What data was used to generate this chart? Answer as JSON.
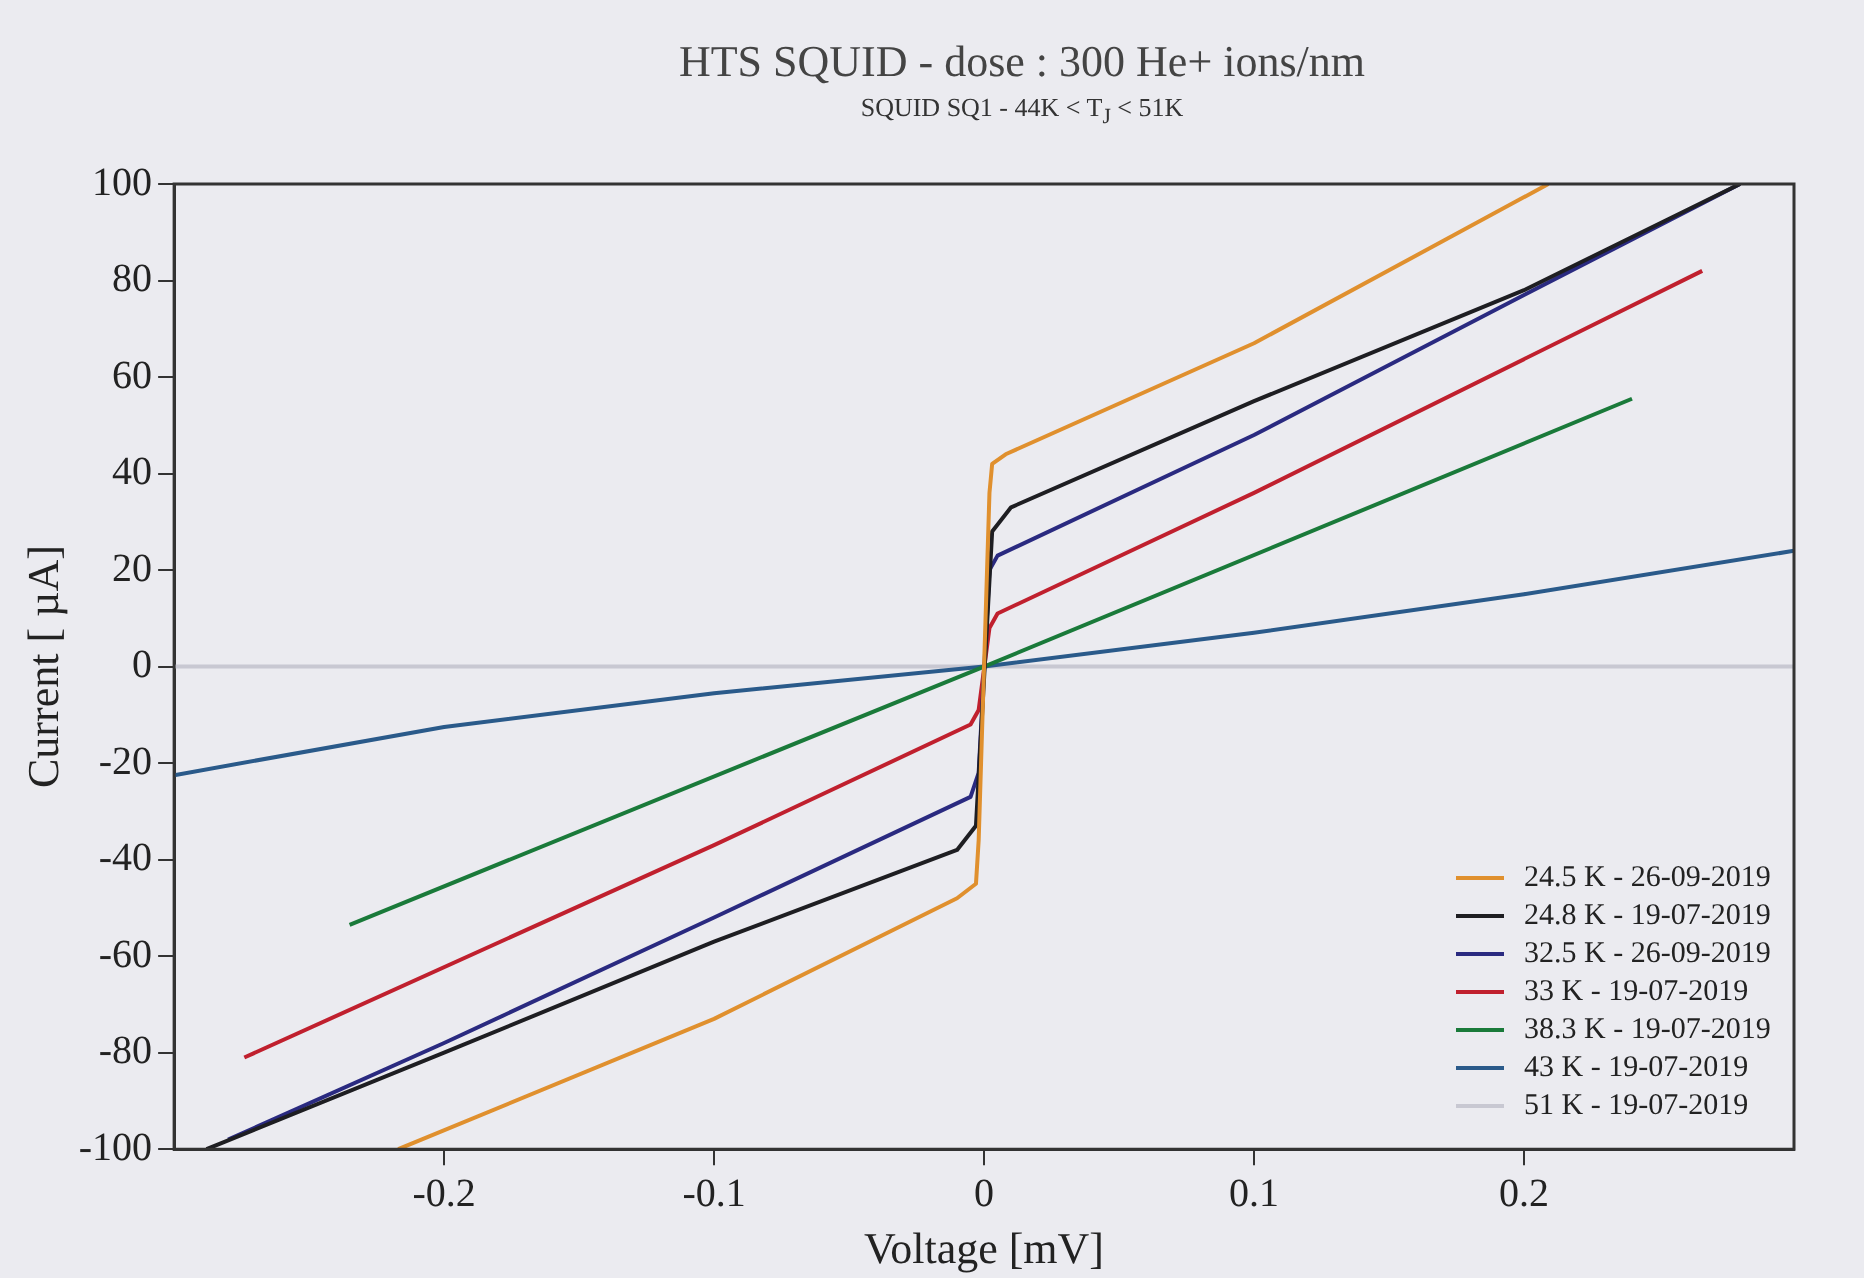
{
  "chart_data": {
    "type": "line",
    "title": "HTS SQUID - dose : 300 He+ ions/nm",
    "subtitle": "SQUID SQ1 - 44K < T$_{J}$ < 51K",
    "xlabel": "Voltage [mV]",
    "ylabel": "Current [ µA]",
    "xlim": [
      -0.3,
      0.3
    ],
    "xticks": [
      -0.2,
      -0.1,
      0,
      0.1,
      0.2
    ],
    "ylim": [
      -100,
      100
    ],
    "yticks": [
      -100,
      -80,
      -60,
      -40,
      -20,
      0,
      20,
      40,
      60,
      80,
      100
    ],
    "grid": false,
    "legend": "bottom right",
    "marker": "none",
    "line_style": "solid",
    "series": [
      {
        "name": "24.5 K - 26-09-2019",
        "color": "#e0902e",
        "x": [
          -0.217,
          -0.1,
          -0.01,
          -0.003,
          -0.002,
          0.002,
          0.003,
          0.008,
          0.1,
          0.209
        ],
        "values": [
          -100,
          -73,
          -48,
          -45,
          -36,
          36,
          42,
          44,
          67,
          100
        ]
      },
      {
        "name": "24.8 K - 19-07-2019",
        "color": "#1e1e22",
        "x": [
          -0.288,
          -0.2,
          -0.1,
          -0.01,
          -0.003,
          0.003,
          0.01,
          0.1,
          0.2,
          0.28
        ],
        "values": [
          -100,
          -80,
          -57,
          -38,
          -33,
          28,
          33,
          55,
          78,
          100
        ]
      },
      {
        "name": "32.5 K - 26-09-2019",
        "color": "#2a2a80",
        "x": [
          -0.28,
          -0.2,
          -0.1,
          -0.005,
          -0.002,
          0.002,
          0.005,
          0.1,
          0.2,
          0.28
        ],
        "values": [
          -98,
          -78,
          -52,
          -27,
          -22,
          20,
          23,
          48,
          77,
          100
        ]
      },
      {
        "name": "33 K - 19-07-2019",
        "color": "#c0202e",
        "x": [
          -0.274,
          -0.1,
          -0.005,
          -0.002,
          0.002,
          0.005,
          0.1,
          0.266
        ],
        "values": [
          -81,
          -37,
          -12,
          -9,
          8,
          11,
          36,
          82
        ]
      },
      {
        "name": "38.3 K - 19-07-2019",
        "color": "#1a7a3a",
        "x": [
          -0.235,
          0,
          0.24
        ],
        "values": [
          -53.5,
          0,
          55.5
        ]
      },
      {
        "name": "43 K - 19-07-2019",
        "color": "#2a5a8a",
        "x": [
          -0.3,
          -0.2,
          -0.1,
          0,
          0.1,
          0.2,
          0.3
        ],
        "values": [
          -22.5,
          -12.5,
          -5.5,
          0,
          7,
          15,
          24
        ]
      },
      {
        "name": "51 K - 19-07-2019",
        "color": "#c8c8d2",
        "x": [
          -0.3,
          0.3
        ],
        "values": [
          0,
          0
        ]
      }
    ]
  }
}
